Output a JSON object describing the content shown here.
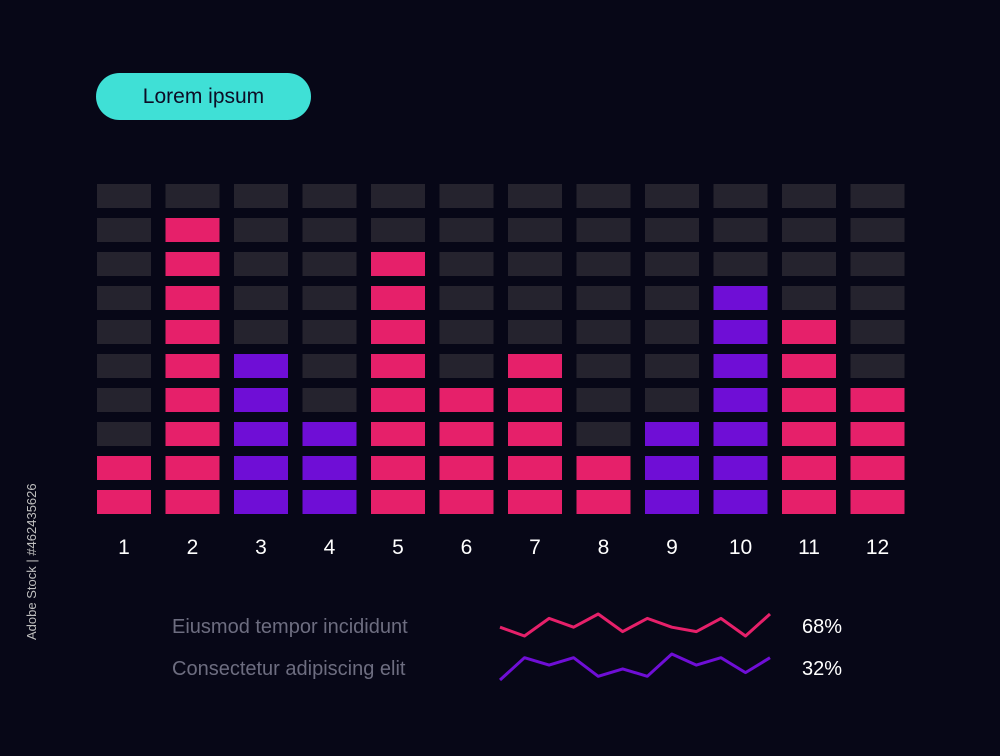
{
  "title_pill": "Lorem ipsum",
  "side_credit": "Adobe Stock | #462435626",
  "colors": {
    "background": "#070717",
    "empty_segment": "#25232e",
    "pink": "#e6206a",
    "purple": "#6f0ed6",
    "pill": "#3fe0d6",
    "legend_text": "#6d6d80"
  },
  "chart_data": {
    "type": "bar",
    "subtype": "segmented-equalizer",
    "categories": [
      "1",
      "2",
      "3",
      "4",
      "5",
      "6",
      "7",
      "8",
      "9",
      "10",
      "11",
      "12"
    ],
    "values": [
      2,
      9,
      5,
      3,
      8,
      4,
      5,
      2,
      3,
      7,
      6,
      4
    ],
    "bar_colors": [
      "pink",
      "pink",
      "purple",
      "purple",
      "pink",
      "pink",
      "pink",
      "pink",
      "purple",
      "purple",
      "pink",
      "pink"
    ],
    "max_segments": 10,
    "grid": false,
    "title": "Lorem ipsum",
    "legend": [
      {
        "label": "Eiusmod tempor incididunt",
        "value": "68%",
        "color": "pink",
        "sparkline": [
          3,
          1,
          5,
          3,
          6,
          2,
          5,
          3,
          2,
          5,
          1,
          6
        ]
      },
      {
        "label": "Consectetur adipiscing elit",
        "value": "32%",
        "color": "purple",
        "sparkline": [
          1,
          7,
          5,
          7,
          2,
          4,
          2,
          8,
          5,
          7,
          3,
          7
        ]
      }
    ]
  }
}
